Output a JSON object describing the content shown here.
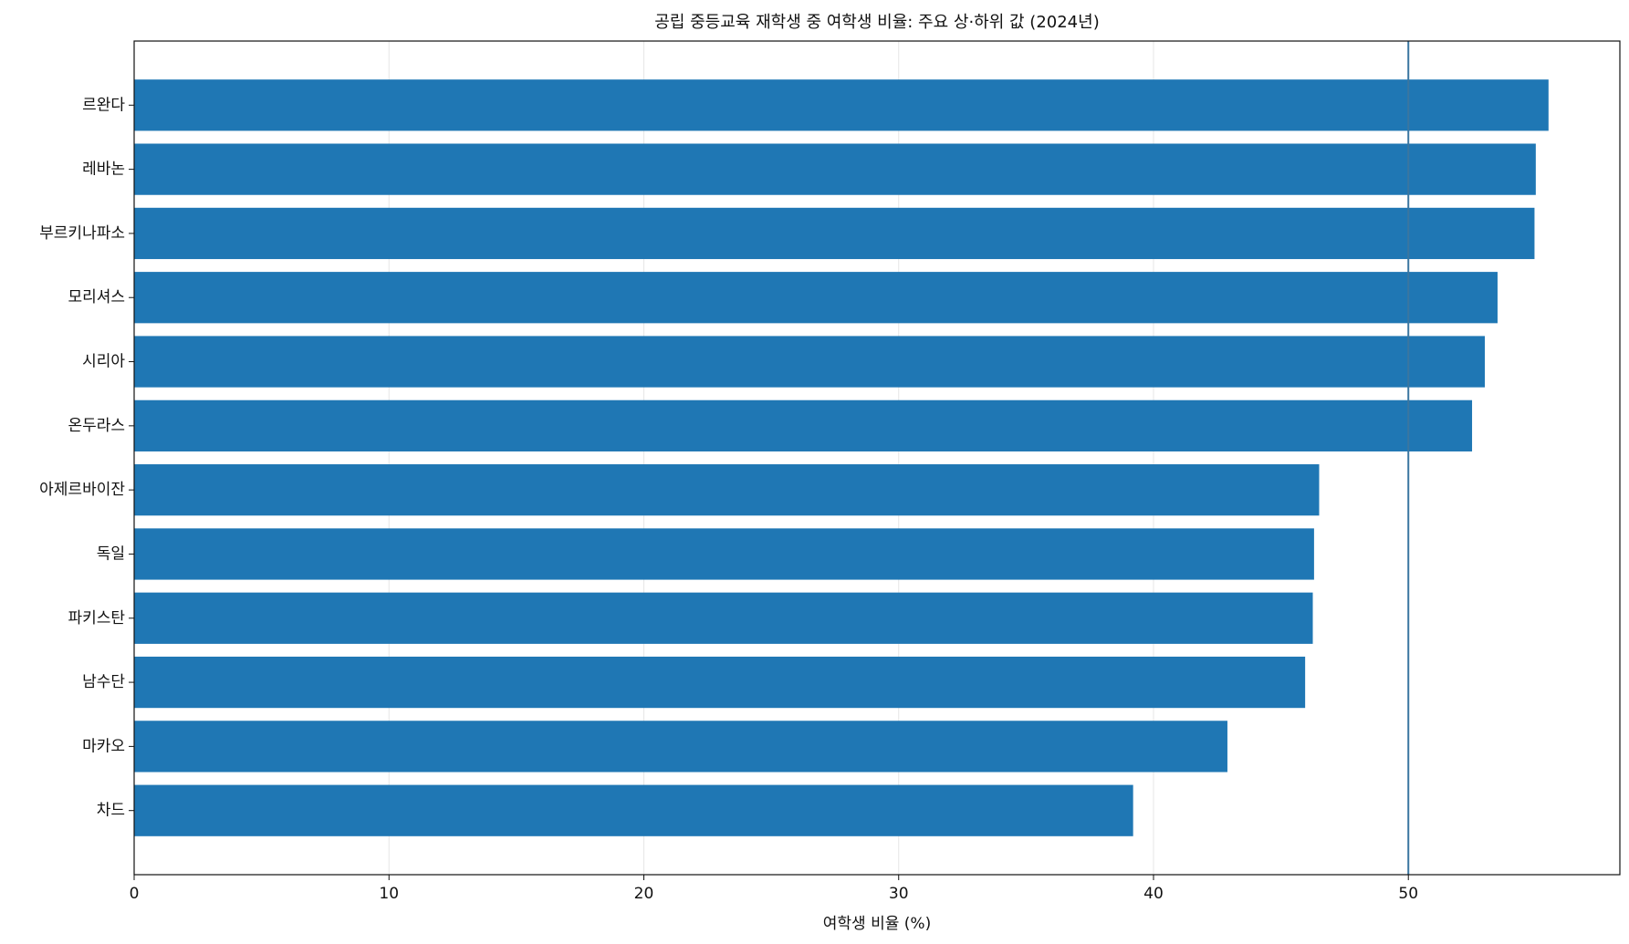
{
  "chart_data": {
    "type": "hbar",
    "title": "공립 중등교육 재학생 중 여학생 비율: 주요 상·하위 값 (2024년)",
    "xlabel": "여학생 비율 (%)",
    "categories": [
      "르완다",
      "레바논",
      "부르키나파소",
      "모리셔스",
      "시리아",
      "온두라스",
      "아제르바이잔",
      "독일",
      "파키스탄",
      "남수단",
      "마카오",
      "차드"
    ],
    "values": [
      55.5,
      55.0,
      54.95,
      53.5,
      53.0,
      52.5,
      46.5,
      46.3,
      46.25,
      45.95,
      42.9,
      39.2
    ],
    "color": "#1f77b4",
    "reference_line": 50,
    "reference_color": "#3a76a0",
    "xlim": [
      0,
      58.3
    ],
    "xticks": [
      0,
      10,
      20,
      30,
      40,
      50
    ],
    "grid": true
  }
}
